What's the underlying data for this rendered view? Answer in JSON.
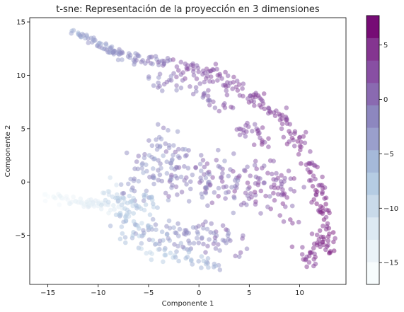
{
  "chart_data": {
    "type": "scatter",
    "title": "t-sne: Representación de la proyección en 3 dimensiones",
    "xlabel": "Componente 1",
    "ylabel": "Componente 2",
    "xlim": [
      -16.8,
      14.6
    ],
    "ylim": [
      -9.6,
      15.4
    ],
    "xticks": [
      -15,
      -10,
      -5,
      0,
      5,
      10
    ],
    "yticks": [
      -5,
      0,
      5,
      10,
      15
    ],
    "xtick_labels": [
      "−15",
      "−10",
      "−5",
      "0",
      "5",
      "10"
    ],
    "ytick_labels": [
      "−5",
      "0",
      "5",
      "10",
      "15"
    ],
    "grid": false,
    "marker_alpha": 0.5,
    "colorbar": {
      "cmap": "BuPu",
      "levels": 11,
      "range": [
        -17,
        7.7
      ],
      "ticks": [
        -15,
        -10,
        -5,
        0,
        5
      ],
      "tick_labels": [
        "−15",
        "−10",
        "−5",
        "0",
        "5"
      ],
      "colors": [
        "#f7fcfd",
        "#ebf3f8",
        "#dde9f2",
        "#c9daea",
        "#b5cce3",
        "#a5b9d9",
        "#9a9fcc",
        "#8d87bf",
        "#8a6ab1",
        "#884fa3",
        "#843590",
        "#760c75"
      ]
    },
    "point_groups": [
      {
        "name": "arm",
        "cx": [
          -12.8,
          -12,
          -11.1,
          -10,
          -9,
          -8,
          -7,
          -6,
          -5,
          -4,
          -3.2
        ],
        "cy": [
          14.3,
          13.8,
          13.6,
          13,
          12.4,
          12,
          11.8,
          11.6,
          11.4,
          11.3,
          11.2
        ],
        "spread": 0.35,
        "zmin": -7,
        "zmax": 2
      },
      {
        "name": "arc_outer",
        "cx": [
          -2,
          0,
          2,
          4,
          6,
          8,
          9.5,
          10.5,
          11.4,
          12,
          12.6,
          13.1
        ],
        "cy": [
          10.8,
          10.5,
          9.8,
          8.7,
          7.5,
          6,
          4.5,
          2.5,
          0.5,
          -1.5,
          -3.5,
          -6.2
        ],
        "spread": 0.7,
        "zmin": 1,
        "zmax": 7.5
      },
      {
        "name": "arc_mid",
        "cx": [
          -4.5,
          -2,
          0,
          2,
          4,
          5.5,
          7
        ],
        "cy": [
          9.5,
          9.3,
          8.8,
          7.5,
          5.5,
          4.8,
          3.5
        ],
        "spread": 0.8,
        "zmin": -3,
        "zmax": 6
      },
      {
        "name": "center",
        "cx": [
          -7,
          -5,
          -3,
          -1,
          1,
          3,
          5,
          7,
          9
        ],
        "cy": [
          -1,
          1.5,
          3,
          1,
          -0.5,
          0.5,
          -1,
          0,
          -2
        ],
        "spread": 2.3,
        "zmin": -6,
        "zmax": 6
      },
      {
        "name": "lower",
        "cx": [
          -8,
          -6,
          -4,
          -2,
          0,
          2,
          4
        ],
        "cy": [
          -3.5,
          -4.5,
          -5,
          -5.5,
          -5.2,
          -5.5,
          -5
        ],
        "spread": 1.3,
        "zmin": -9,
        "zmax": 3
      },
      {
        "name": "bottom",
        "cx": [
          -5.5,
          -3.5,
          -2,
          0,
          1.5,
          2.5
        ],
        "cy": [
          -6.5,
          -6.8,
          -7,
          -7.5,
          -7.8,
          -8
        ],
        "spread": 0.6,
        "zmin": -11,
        "zmax": -2
      },
      {
        "name": "left_tail",
        "cx": [
          -15.2,
          -14,
          -12.5,
          -11,
          -9.5,
          -8
        ],
        "cy": [
          -1.5,
          -1.6,
          -1.7,
          -1.9,
          -2.2,
          -2.5
        ],
        "spread": 0.45,
        "zmin": -17,
        "zmax": -11
      },
      {
        "name": "left_mid",
        "cx": [
          -9.5,
          -8,
          -6.5,
          -5
        ],
        "cy": [
          -0.5,
          -2,
          -2.5,
          -1.5
        ],
        "spread": 1.1,
        "zmin": -12,
        "zmax": -5
      },
      {
        "name": "right_edge",
        "cx": [
          9.5,
          11,
          12,
          13
        ],
        "cy": [
          -5.8,
          -7.6,
          -5,
          -6.8
        ],
        "spread": 0.6,
        "zmin": 3,
        "zmax": 7.5
      }
    ],
    "point_counts": [
      95,
      190,
      70,
      260,
      120,
      35,
      60,
      60,
      40
    ]
  }
}
